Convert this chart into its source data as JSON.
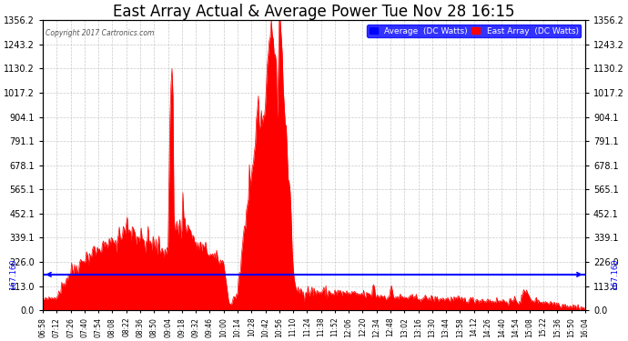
{
  "title": "East Array Actual & Average Power Tue Nov 28 16:15",
  "copyright": "Copyright 2017 Cartronics.com",
  "legend_blue": "Average  (DC Watts)",
  "legend_red": "East Array  (DC Watts)",
  "avg_value": 167.16,
  "avg_label": "167.160",
  "ymax": 1356.2,
  "ymin": 0.0,
  "ytick_vals": [
    0.0,
    113.0,
    226.0,
    339.1,
    452.1,
    565.1,
    678.1,
    791.1,
    904.1,
    1017.2,
    1130.2,
    1243.2,
    1356.2
  ],
  "ytick_strs": [
    "0.0",
    "113.0",
    "226.0",
    "339.1",
    "452.1",
    "565.1",
    "678.1",
    "791.1",
    "904.1",
    "1017.2",
    "1130.2",
    "1243.2",
    "1356.2"
  ],
  "xtick_labels": [
    "06:58",
    "07:12",
    "07:26",
    "07:40",
    "07:54",
    "08:08",
    "08:22",
    "08:36",
    "08:50",
    "09:04",
    "09:18",
    "09:32",
    "09:46",
    "10:00",
    "10:14",
    "10:28",
    "10:42",
    "10:56",
    "11:10",
    "11:24",
    "11:38",
    "11:52",
    "12:06",
    "12:20",
    "12:34",
    "12:48",
    "13:02",
    "13:16",
    "13:30",
    "13:44",
    "13:58",
    "14:12",
    "14:26",
    "14:40",
    "14:54",
    "15:08",
    "15:22",
    "15:36",
    "15:50",
    "16:04"
  ],
  "background_color": "#ffffff",
  "grid_color": "#bbbbbb",
  "title_fontsize": 12,
  "avg_line_color": "#0000ff",
  "fill_color": "#ff0000",
  "legend_bg": "#0000cc"
}
